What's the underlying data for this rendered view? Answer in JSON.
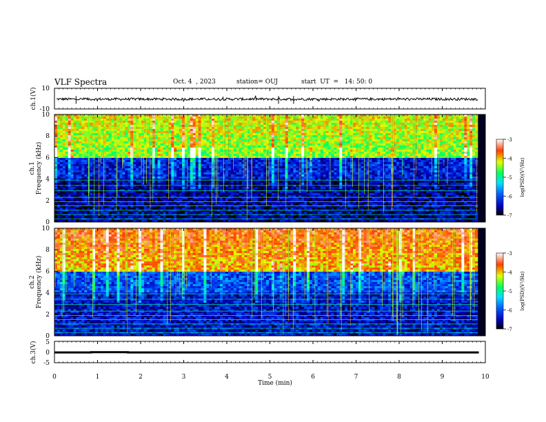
{
  "header": {
    "title": "VLF Spectra",
    "date": "Oct. 4  , 2023",
    "station": "station= OUJ",
    "start": "start  UT  =   14: 50: 0"
  },
  "chart_data": [
    {
      "type": "line",
      "panel": "ch1-waveform",
      "ylabel": "ch.1(V)",
      "ylim": [
        -10,
        10
      ],
      "yticks": [
        "10",
        "-10"
      ],
      "series": [
        {
          "values": "noise around -0.5 V, amplitude about 1.5 V"
        }
      ]
    },
    {
      "type": "heatmap",
      "panel": "ch1-spectrogram",
      "ylabel": "Frequency (kHz)",
      "channel_label": "ch.1",
      "xlim": [
        0,
        10
      ],
      "ylim": [
        0,
        10
      ],
      "yticks": [
        "0",
        "2",
        "4",
        "6",
        "8",
        "10"
      ],
      "colorbar": {
        "label": "log(PSD)(V²/Hz)",
        "ticks": [
          "-3",
          "-4",
          "-5",
          "-6",
          "-7"
        ],
        "range": [
          -7,
          -3
        ]
      },
      "description_levels": {
        "above_6kHz": -4.5,
        "4_to_6kHz": -6.3,
        "below_4kHz": -6.6
      }
    },
    {
      "type": "heatmap",
      "panel": "ch2-spectrogram",
      "ylabel": "Frequency (kHz)",
      "channel_label": "ch.2",
      "xlim": [
        0,
        10
      ],
      "ylim": [
        0,
        10
      ],
      "yticks": [
        "0",
        "2",
        "4",
        "6",
        "8",
        "10"
      ],
      "colorbar": {
        "label": "log(PSD)(V²/Hz)",
        "ticks": [
          "-3",
          "-4",
          "-5",
          "-6",
          "-7"
        ],
        "range": [
          -7,
          -3
        ]
      },
      "description_levels": {
        "above_6kHz": -4.0,
        "4_to_6kHz": -6.0,
        "below_4kHz": -6.4
      }
    },
    {
      "type": "line",
      "panel": "ch3-level",
      "ylabel": "ch.3(V)",
      "ylim": [
        -5,
        5
      ],
      "yticks": [
        "5",
        "0",
        "-5"
      ],
      "series": [
        {
          "values": [
            [
              0,
              -0.2
            ],
            [
              0.85,
              -0.2
            ],
            [
              0.85,
              -0.05
            ],
            [
              1.7,
              -0.05
            ],
            [
              1.7,
              -0.2
            ],
            [
              9.85,
              -0.2
            ]
          ]
        }
      ]
    }
  ],
  "xaxis": {
    "label": "Time  (min)",
    "ticks": [
      "0",
      "1",
      "2",
      "3",
      "4",
      "5",
      "6",
      "7",
      "8",
      "9",
      "10"
    ],
    "xlim": [
      0,
      10
    ]
  }
}
